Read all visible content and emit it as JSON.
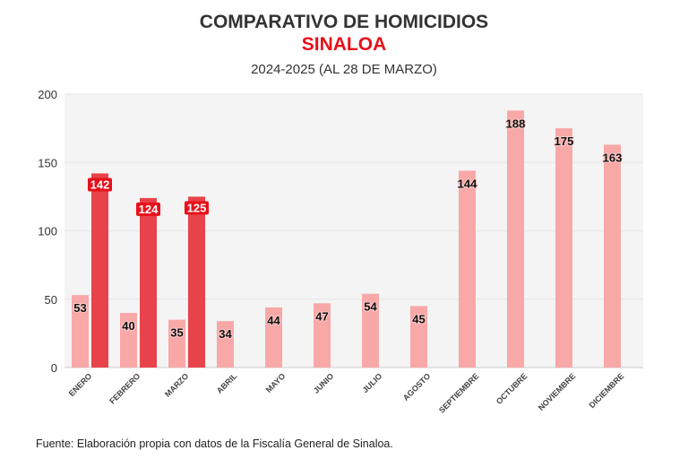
{
  "chart_data": {
    "type": "bar",
    "title": "COMPARATIVO DE HOMICIDIOS",
    "title_line2": "SINALOA",
    "subtitle": "2024-2025 (AL 28 DE MARZO)",
    "categories": [
      "ENERO",
      "FEBRERO",
      "MARZO",
      "ABRIL",
      "MAYO",
      "JUNIO",
      "JULIO",
      "AGOSTO",
      "SEPTIEMBRE",
      "OCTUBRE",
      "NOVIEMBRE",
      "DICIEMBRE"
    ],
    "series": [
      {
        "values": [
          53,
          40,
          35,
          34,
          44,
          47,
          54,
          45,
          144,
          188,
          175,
          163
        ],
        "color": "#f9a8a8"
      },
      {
        "values": [
          142,
          124,
          125,
          null,
          null,
          null,
          null,
          null,
          null,
          null,
          null,
          null
        ],
        "color": "#e8434a"
      }
    ],
    "ylim": [
      0,
      200
    ],
    "yticks": [
      0,
      50,
      100,
      150,
      200
    ],
    "grid": true,
    "legend": "none"
  },
  "colors": {
    "title": "#333333",
    "title_line2": "#e8101a",
    "plot_bg": "#f4f4f4"
  },
  "source": "Fuente: Elaboración propia con datos de la Fiscalía General de Sinaloa."
}
